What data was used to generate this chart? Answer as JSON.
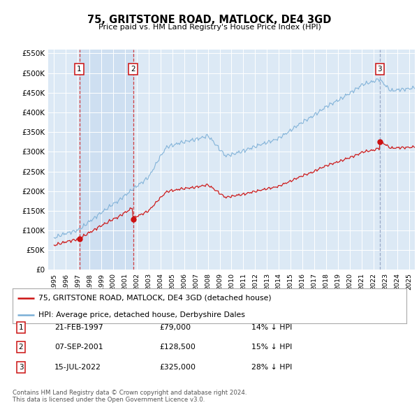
{
  "title": "75, GRITSTONE ROAD, MATLOCK, DE4 3GD",
  "subtitle": "Price paid vs. HM Land Registry's House Price Index (HPI)",
  "bg_color": "#dce9f5",
  "grid_color": "#ffffff",
  "hpi_color": "#7aaed6",
  "price_color": "#cc1111",
  "shade_color": "#c5d9ef",
  "transactions": [
    {
      "date_num": 1997.13,
      "price": 79000,
      "label": "1",
      "vline_color": "#cc1111",
      "vline_style": "--"
    },
    {
      "date_num": 2001.68,
      "price": 128500,
      "label": "2",
      "vline_color": "#cc1111",
      "vline_style": "--"
    },
    {
      "date_num": 2022.54,
      "price": 325000,
      "label": "3",
      "vline_color": "#8899bb",
      "vline_style": "--"
    }
  ],
  "transaction_table": [
    {
      "num": "1",
      "date": "21-FEB-1997",
      "price": "£79,000",
      "note": "14% ↓ HPI"
    },
    {
      "num": "2",
      "date": "07-SEP-2001",
      "price": "£128,500",
      "note": "15% ↓ HPI"
    },
    {
      "num": "3",
      "date": "15-JUL-2022",
      "price": "£325,000",
      "note": "28% ↓ HPI"
    }
  ],
  "legend_entries": [
    "75, GRITSTONE ROAD, MATLOCK, DE4 3GD (detached house)",
    "HPI: Average price, detached house, Derbyshire Dales"
  ],
  "footer": "Contains HM Land Registry data © Crown copyright and database right 2024.\nThis data is licensed under the Open Government Licence v3.0.",
  "ylim": [
    0,
    560000
  ],
  "yticks": [
    0,
    50000,
    100000,
    150000,
    200000,
    250000,
    300000,
    350000,
    400000,
    450000,
    500000,
    550000
  ],
  "ytick_labels": [
    "£0",
    "£50K",
    "£100K",
    "£150K",
    "£200K",
    "£250K",
    "£300K",
    "£350K",
    "£400K",
    "£450K",
    "£500K",
    "£550K"
  ],
  "xlim_start": 1994.5,
  "xlim_end": 2025.5,
  "xticks": [
    1995,
    1996,
    1997,
    1998,
    1999,
    2000,
    2001,
    2002,
    2003,
    2004,
    2005,
    2006,
    2007,
    2008,
    2009,
    2010,
    2011,
    2012,
    2013,
    2014,
    2015,
    2016,
    2017,
    2018,
    2019,
    2020,
    2021,
    2022,
    2023,
    2024,
    2025
  ]
}
